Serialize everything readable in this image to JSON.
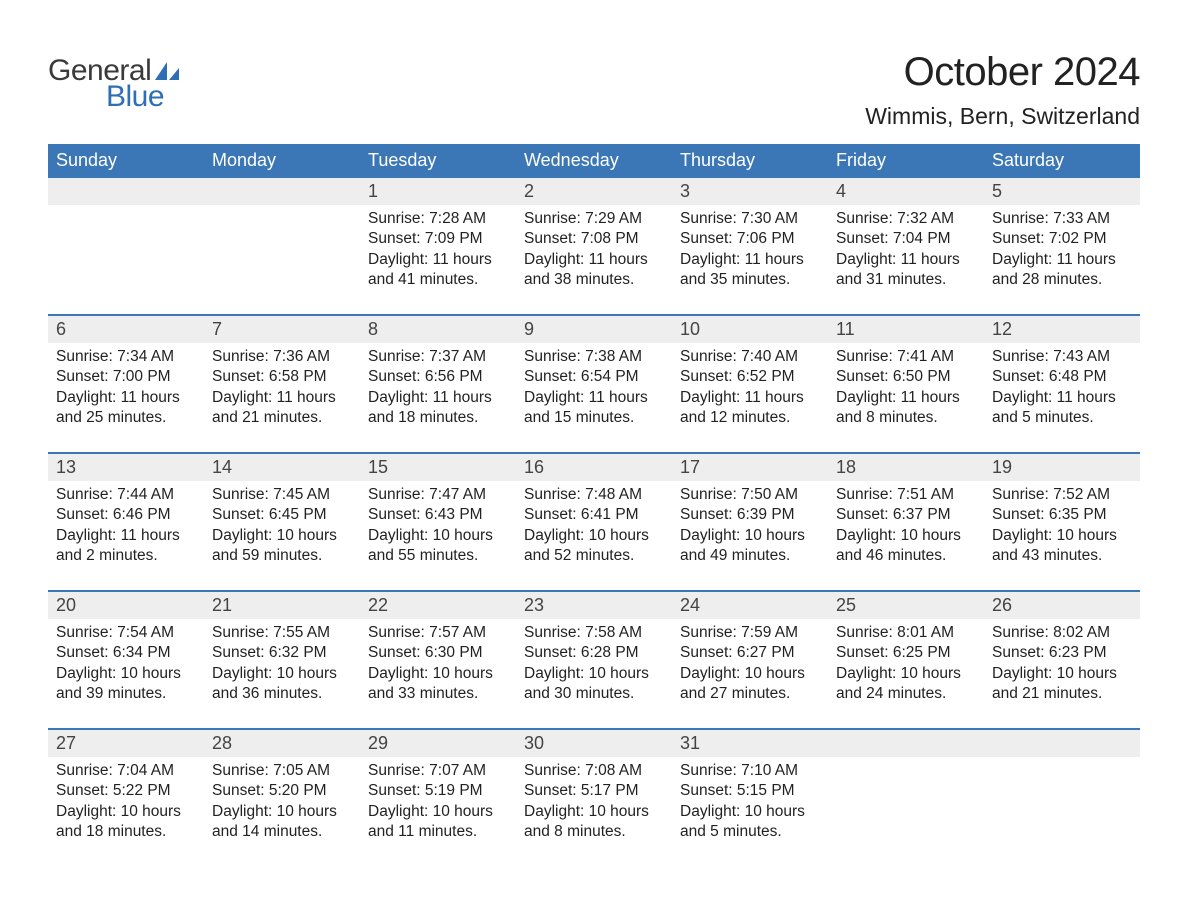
{
  "brand": {
    "general": "General",
    "blue": "Blue",
    "sail_color": "#2e6eb5"
  },
  "title": "October 2024",
  "location": "Wimmis, Bern, Switzerland",
  "colors": {
    "header_bg": "#3b76b6",
    "header_text": "#ffffff",
    "daynum_bg": "#eeeeee",
    "row_border": "#3b76b6",
    "body_text": "#222222",
    "background": "#ffffff"
  },
  "day_headers": [
    "Sunday",
    "Monday",
    "Tuesday",
    "Wednesday",
    "Thursday",
    "Friday",
    "Saturday"
  ],
  "weeks": [
    [
      {
        "n": "",
        "sunrise": "",
        "sunset": "",
        "daylight": ""
      },
      {
        "n": "",
        "sunrise": "",
        "sunset": "",
        "daylight": ""
      },
      {
        "n": "1",
        "sunrise": "Sunrise: 7:28 AM",
        "sunset": "Sunset: 7:09 PM",
        "daylight": "Daylight: 11 hours and 41 minutes."
      },
      {
        "n": "2",
        "sunrise": "Sunrise: 7:29 AM",
        "sunset": "Sunset: 7:08 PM",
        "daylight": "Daylight: 11 hours and 38 minutes."
      },
      {
        "n": "3",
        "sunrise": "Sunrise: 7:30 AM",
        "sunset": "Sunset: 7:06 PM",
        "daylight": "Daylight: 11 hours and 35 minutes."
      },
      {
        "n": "4",
        "sunrise": "Sunrise: 7:32 AM",
        "sunset": "Sunset: 7:04 PM",
        "daylight": "Daylight: 11 hours and 31 minutes."
      },
      {
        "n": "5",
        "sunrise": "Sunrise: 7:33 AM",
        "sunset": "Sunset: 7:02 PM",
        "daylight": "Daylight: 11 hours and 28 minutes."
      }
    ],
    [
      {
        "n": "6",
        "sunrise": "Sunrise: 7:34 AM",
        "sunset": "Sunset: 7:00 PM",
        "daylight": "Daylight: 11 hours and 25 minutes."
      },
      {
        "n": "7",
        "sunrise": "Sunrise: 7:36 AM",
        "sunset": "Sunset: 6:58 PM",
        "daylight": "Daylight: 11 hours and 21 minutes."
      },
      {
        "n": "8",
        "sunrise": "Sunrise: 7:37 AM",
        "sunset": "Sunset: 6:56 PM",
        "daylight": "Daylight: 11 hours and 18 minutes."
      },
      {
        "n": "9",
        "sunrise": "Sunrise: 7:38 AM",
        "sunset": "Sunset: 6:54 PM",
        "daylight": "Daylight: 11 hours and 15 minutes."
      },
      {
        "n": "10",
        "sunrise": "Sunrise: 7:40 AM",
        "sunset": "Sunset: 6:52 PM",
        "daylight": "Daylight: 11 hours and 12 minutes."
      },
      {
        "n": "11",
        "sunrise": "Sunrise: 7:41 AM",
        "sunset": "Sunset: 6:50 PM",
        "daylight": "Daylight: 11 hours and 8 minutes."
      },
      {
        "n": "12",
        "sunrise": "Sunrise: 7:43 AM",
        "sunset": "Sunset: 6:48 PM",
        "daylight": "Daylight: 11 hours and 5 minutes."
      }
    ],
    [
      {
        "n": "13",
        "sunrise": "Sunrise: 7:44 AM",
        "sunset": "Sunset: 6:46 PM",
        "daylight": "Daylight: 11 hours and 2 minutes."
      },
      {
        "n": "14",
        "sunrise": "Sunrise: 7:45 AM",
        "sunset": "Sunset: 6:45 PM",
        "daylight": "Daylight: 10 hours and 59 minutes."
      },
      {
        "n": "15",
        "sunrise": "Sunrise: 7:47 AM",
        "sunset": "Sunset: 6:43 PM",
        "daylight": "Daylight: 10 hours and 55 minutes."
      },
      {
        "n": "16",
        "sunrise": "Sunrise: 7:48 AM",
        "sunset": "Sunset: 6:41 PM",
        "daylight": "Daylight: 10 hours and 52 minutes."
      },
      {
        "n": "17",
        "sunrise": "Sunrise: 7:50 AM",
        "sunset": "Sunset: 6:39 PM",
        "daylight": "Daylight: 10 hours and 49 minutes."
      },
      {
        "n": "18",
        "sunrise": "Sunrise: 7:51 AM",
        "sunset": "Sunset: 6:37 PM",
        "daylight": "Daylight: 10 hours and 46 minutes."
      },
      {
        "n": "19",
        "sunrise": "Sunrise: 7:52 AM",
        "sunset": "Sunset: 6:35 PM",
        "daylight": "Daylight: 10 hours and 43 minutes."
      }
    ],
    [
      {
        "n": "20",
        "sunrise": "Sunrise: 7:54 AM",
        "sunset": "Sunset: 6:34 PM",
        "daylight": "Daylight: 10 hours and 39 minutes."
      },
      {
        "n": "21",
        "sunrise": "Sunrise: 7:55 AM",
        "sunset": "Sunset: 6:32 PM",
        "daylight": "Daylight: 10 hours and 36 minutes."
      },
      {
        "n": "22",
        "sunrise": "Sunrise: 7:57 AM",
        "sunset": "Sunset: 6:30 PM",
        "daylight": "Daylight: 10 hours and 33 minutes."
      },
      {
        "n": "23",
        "sunrise": "Sunrise: 7:58 AM",
        "sunset": "Sunset: 6:28 PM",
        "daylight": "Daylight: 10 hours and 30 minutes."
      },
      {
        "n": "24",
        "sunrise": "Sunrise: 7:59 AM",
        "sunset": "Sunset: 6:27 PM",
        "daylight": "Daylight: 10 hours and 27 minutes."
      },
      {
        "n": "25",
        "sunrise": "Sunrise: 8:01 AM",
        "sunset": "Sunset: 6:25 PM",
        "daylight": "Daylight: 10 hours and 24 minutes."
      },
      {
        "n": "26",
        "sunrise": "Sunrise: 8:02 AM",
        "sunset": "Sunset: 6:23 PM",
        "daylight": "Daylight: 10 hours and 21 minutes."
      }
    ],
    [
      {
        "n": "27",
        "sunrise": "Sunrise: 7:04 AM",
        "sunset": "Sunset: 5:22 PM",
        "daylight": "Daylight: 10 hours and 18 minutes."
      },
      {
        "n": "28",
        "sunrise": "Sunrise: 7:05 AM",
        "sunset": "Sunset: 5:20 PM",
        "daylight": "Daylight: 10 hours and 14 minutes."
      },
      {
        "n": "29",
        "sunrise": "Sunrise: 7:07 AM",
        "sunset": "Sunset: 5:19 PM",
        "daylight": "Daylight: 10 hours and 11 minutes."
      },
      {
        "n": "30",
        "sunrise": "Sunrise: 7:08 AM",
        "sunset": "Sunset: 5:17 PM",
        "daylight": "Daylight: 10 hours and 8 minutes."
      },
      {
        "n": "31",
        "sunrise": "Sunrise: 7:10 AM",
        "sunset": "Sunset: 5:15 PM",
        "daylight": "Daylight: 10 hours and 5 minutes."
      },
      {
        "n": "",
        "sunrise": "",
        "sunset": "",
        "daylight": ""
      },
      {
        "n": "",
        "sunrise": "",
        "sunset": "",
        "daylight": ""
      }
    ]
  ]
}
